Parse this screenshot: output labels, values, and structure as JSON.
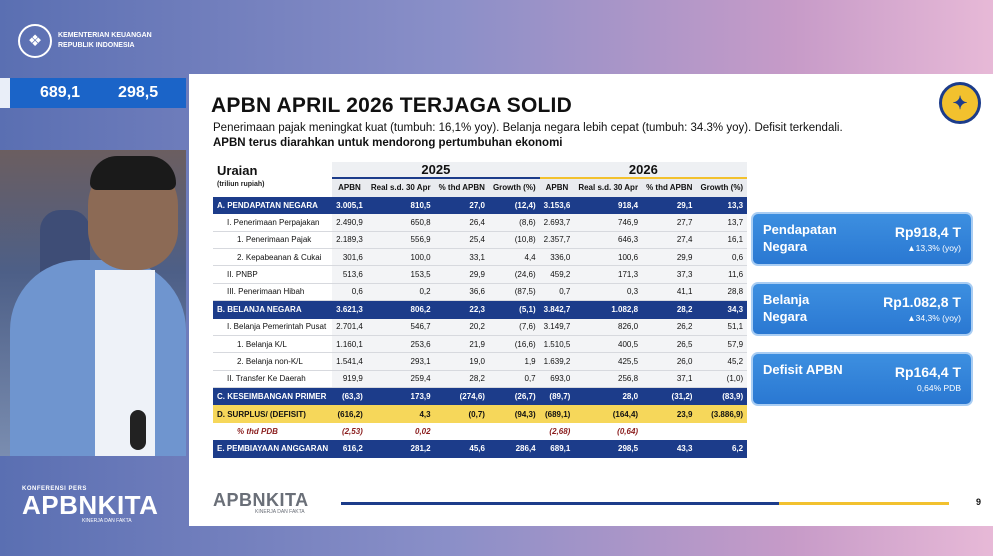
{
  "brand": {
    "line1": "KEMENTERIAN KEUANGAN",
    "line2": "REPUBLIK INDONESIA"
  },
  "ticker": {
    "v1": "689,1",
    "v2": "298,5"
  },
  "event": {
    "small": "KONFERENSI PERS",
    "big": "APBNKITA",
    "tag": "KINERJA DAN FAKTA"
  },
  "slide": {
    "title": "APBN APRIL 2026 TERJAGA SOLID",
    "subtitle": "Penerimaan pajak meningkat kuat (tumbuh: 16,1% yoy). Belanja negara lebih cepat (tumbuh: 34.3% yoy). Defisit terkendali.",
    "subtitle2": "APBN terus diarahkan untuk mendorong pertumbuhan ekonomi",
    "table": {
      "uraian_label": "Uraian",
      "unit_label": "(triliun rupiah)",
      "year1": "2025",
      "year2": "2026",
      "cols": [
        "APBN",
        "Real s.d. 30 Apr",
        "% thd APBN",
        "Growth (%)"
      ],
      "rows": [
        {
          "label": "A. PENDAPATAN NEGARA",
          "style": "blue",
          "indent": 0,
          "v": [
            "3.005,1",
            "810,5",
            "27,0",
            "(12,4)",
            "3.153,6",
            "918,4",
            "29,1",
            "13,3"
          ]
        },
        {
          "label": "I. Penerimaan Perpajakan",
          "style": "plain",
          "indent": 1,
          "v": [
            "2.490,9",
            "650,8",
            "26,4",
            "(8,6)",
            "2.693,7",
            "746,9",
            "27,7",
            "13,7"
          ]
        },
        {
          "label": "1. Penerimaan Pajak",
          "style": "plain",
          "indent": 2,
          "v": [
            "2.189,3",
            "556,9",
            "25,4",
            "(10,8)",
            "2.357,7",
            "646,3",
            "27,4",
            "16,1"
          ]
        },
        {
          "label": "2. Kepabeanan & Cukai",
          "style": "plain",
          "indent": 2,
          "v": [
            "301,6",
            "100,0",
            "33,1",
            "4,4",
            "336,0",
            "100,6",
            "29,9",
            "0,6"
          ]
        },
        {
          "label": "II. PNBP",
          "style": "plain",
          "indent": 1,
          "v": [
            "513,6",
            "153,5",
            "29,9",
            "(24,6)",
            "459,2",
            "171,3",
            "37,3",
            "11,6"
          ]
        },
        {
          "label": "III. Penerimaan Hibah",
          "style": "plain",
          "indent": 1,
          "v": [
            "0,6",
            "0,2",
            "36,6",
            "(87,5)",
            "0,7",
            "0,3",
            "41,1",
            "28,8"
          ]
        },
        {
          "label": "B. BELANJA NEGARA",
          "style": "blue",
          "indent": 0,
          "v": [
            "3.621,3",
            "806,2",
            "22,3",
            "(5,1)",
            "3.842,7",
            "1.082,8",
            "28,2",
            "34,3"
          ]
        },
        {
          "label": "I. Belanja Pemerintah Pusat",
          "style": "plain",
          "indent": 1,
          "v": [
            "2.701,4",
            "546,7",
            "20,2",
            "(7,6)",
            "3.149,7",
            "826,0",
            "26,2",
            "51,1"
          ]
        },
        {
          "label": "1. Belanja K/L",
          "style": "plain",
          "indent": 2,
          "v": [
            "1.160,1",
            "253,6",
            "21,9",
            "(16,6)",
            "1.510,5",
            "400,5",
            "26,5",
            "57,9"
          ]
        },
        {
          "label": "2. Belanja non-K/L",
          "style": "plain",
          "indent": 2,
          "v": [
            "1.541,4",
            "293,1",
            "19,0",
            "1,9",
            "1.639,2",
            "425,5",
            "26,0",
            "45,2"
          ]
        },
        {
          "label": "II. Transfer Ke Daerah",
          "style": "plain",
          "indent": 1,
          "v": [
            "919,9",
            "259,4",
            "28,2",
            "0,7",
            "693,0",
            "256,8",
            "37,1",
            "(1,0)"
          ]
        },
        {
          "label": "C. KESEIMBANGAN PRIMER",
          "style": "blue",
          "indent": 0,
          "v": [
            "(63,3)",
            "173,9",
            "(274,6)",
            "(26,7)",
            "(89,7)",
            "28,0",
            "(31,2)",
            "(83,9)"
          ]
        },
        {
          "label": "D. SURPLUS/ (DEFISIT)",
          "style": "yellow",
          "indent": 0,
          "v": [
            "(616,2)",
            "4,3",
            "(0,7)",
            "(94,3)",
            "(689,1)",
            "(164,4)",
            "23,9",
            "(3.886,9)"
          ]
        },
        {
          "label": "% thd PDB",
          "style": "pdb",
          "indent": 2,
          "v": [
            "(2,53)",
            "0,02",
            "",
            "",
            "(2,68)",
            "(0,64)",
            "",
            ""
          ]
        },
        {
          "label": "E. PEMBIAYAAN ANGGARAN",
          "style": "blue",
          "indent": 0,
          "v": [
            "616,2",
            "281,2",
            "45,6",
            "286,4",
            "689,1",
            "298,5",
            "43,3",
            "6,2"
          ]
        }
      ]
    },
    "cards": [
      {
        "label": "Pendapatan Negara",
        "value": "Rp918,4 T",
        "sub": "▲13,3% (yoy)"
      },
      {
        "label": "Belanja Negara",
        "value": "Rp1.082,8 T",
        "sub": "▲34,3% (yoy)"
      },
      {
        "label": "Defisit APBN",
        "value": "Rp164,4 T",
        "sub": "0,64% PDB"
      }
    ],
    "footer_big": "APBNKITA",
    "footer_tag": "KINERJA DAN FAKTA",
    "page": "9"
  }
}
